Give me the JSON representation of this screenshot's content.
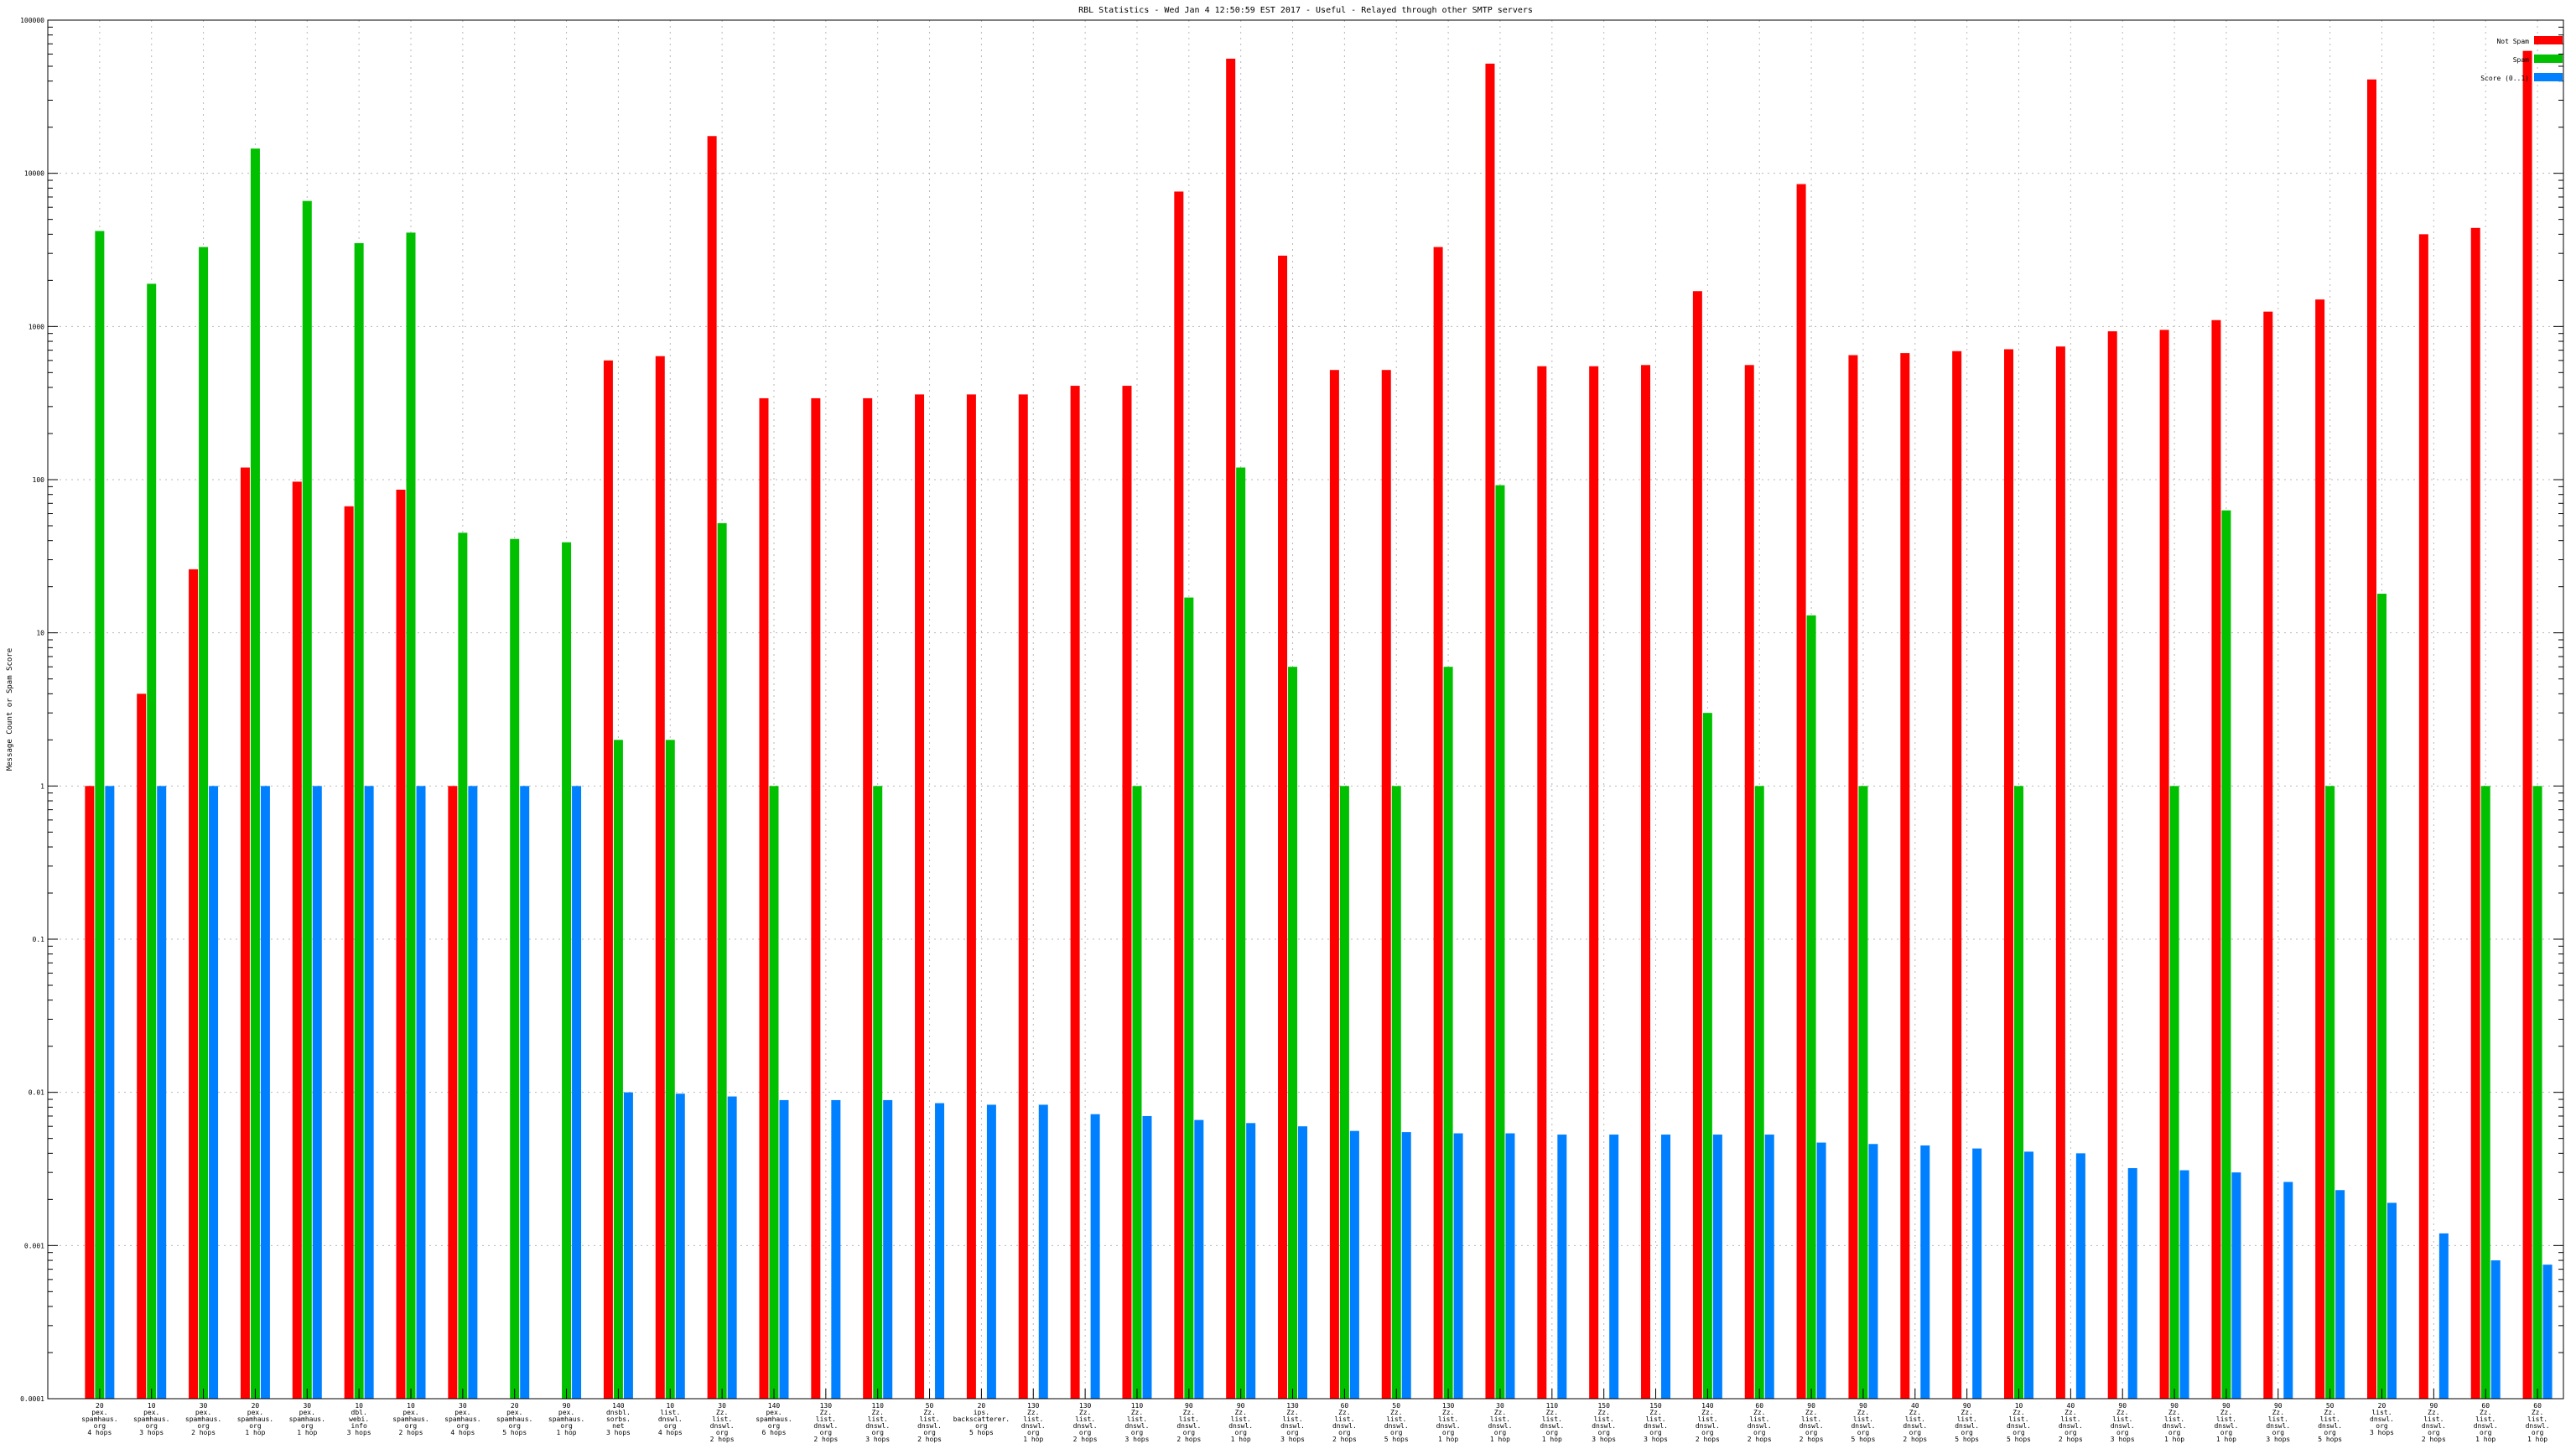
{
  "chart_data": {
    "type": "bar",
    "title": "RBL Statistics - Wed Jan  4 12:50:59 EST 2017 - Useful - Relayed through other SMTP servers",
    "xlabel": "",
    "ylabel": "Message Count or Spam Score",
    "yscale": "log",
    "ylim": [
      0.0001,
      100000
    ],
    "yticks": [
      "0.0001",
      "0.001",
      "0.01",
      "0.1",
      "1",
      "10",
      "100",
      "1000",
      "10000",
      "100000"
    ],
    "grid": true,
    "legend_position": "top-right",
    "categories": [
      [
        "20",
        "pex.",
        "spamhaus.",
        "org",
        "4 hops"
      ],
      [
        "10",
        "pex.",
        "spamhaus.",
        "org",
        "3 hops"
      ],
      [
        "30",
        "pex.",
        "spamhaus.",
        "org",
        "2 hops"
      ],
      [
        "20",
        "pex.",
        "spamhaus.",
        "org",
        "1 hop"
      ],
      [
        "30",
        "pex.",
        "spamhaus.",
        "org",
        "1 hop"
      ],
      [
        "10",
        "dbl.",
        "webi.",
        "info",
        "3 hops"
      ],
      [
        "10",
        "pex.",
        "spamhaus.",
        "org",
        "2 hops"
      ],
      [
        "30",
        "pex.",
        "spamhaus.",
        "org",
        "4 hops"
      ],
      [
        "20",
        "pex.",
        "spamhaus.",
        "org",
        "5 hops"
      ],
      [
        "90",
        "pex.",
        "spamhaus.",
        "org",
        "1 hop"
      ],
      [
        "140",
        "dnsbl.",
        "sorbs.",
        "net",
        "3 hops"
      ],
      [
        "10",
        "list.",
        "dnswl.",
        "org",
        "4 hops"
      ],
      [
        "30",
        "Zz.",
        "list.",
        "dnswl.",
        "org",
        "2 hops"
      ],
      [
        "140",
        "pex.",
        "spamhaus.",
        "org",
        "6 hops"
      ],
      [
        "130",
        "Zz.",
        "list.",
        "dnswl.",
        "org",
        "2 hops"
      ],
      [
        "110",
        "Zz.",
        "list.",
        "dnswl.",
        "org",
        "3 hops"
      ],
      [
        "50",
        "Zz.",
        "list.",
        "dnswl.",
        "org",
        "2 hops"
      ],
      [
        "20",
        "ips.",
        "backscatterer.",
        "org",
        "5 hops"
      ],
      [
        "130",
        "Zz.",
        "list.",
        "dnswl.",
        "org",
        "1 hop"
      ],
      [
        "130",
        "Zz.",
        "list.",
        "dnswl.",
        "org",
        "2 hops"
      ],
      [
        "110",
        "Zz.",
        "list.",
        "dnswl.",
        "org",
        "3 hops"
      ],
      [
        "90",
        "Zz.",
        "list.",
        "dnswl.",
        "org",
        "2 hops"
      ],
      [
        "90",
        "Zz.",
        "list.",
        "dnswl.",
        "org",
        "1 hop"
      ],
      [
        "130",
        "Zz.",
        "list.",
        "dnswl.",
        "org",
        "3 hops"
      ],
      [
        "60",
        "Zz.",
        "list.",
        "dnswl.",
        "org",
        "2 hops"
      ],
      [
        "50",
        "Zz.",
        "list.",
        "dnswl.",
        "org",
        "5 hops"
      ],
      [
        "130",
        "Zz.",
        "list.",
        "dnswl.",
        "org",
        "1 hop"
      ],
      [
        "30",
        "Zz.",
        "list.",
        "dnswl.",
        "org",
        "1 hop"
      ],
      [
        "110",
        "Zz.",
        "list.",
        "dnswl.",
        "org",
        "1 hop"
      ],
      [
        "150",
        "Zz.",
        "list.",
        "dnswl.",
        "org",
        "3 hops"
      ],
      [
        "150",
        "Zz.",
        "list.",
        "dnswl.",
        "org",
        "3 hops"
      ],
      [
        "140",
        "Zz.",
        "list.",
        "dnswl.",
        "org",
        "2 hops"
      ],
      [
        "60",
        "Zz.",
        "list.",
        "dnswl.",
        "org",
        "2 hops"
      ],
      [
        "90",
        "Zz.",
        "list.",
        "dnswl.",
        "org",
        "2 hops"
      ],
      [
        "90",
        "Zz.",
        "list.",
        "dnswl.",
        "org",
        "5 hops"
      ],
      [
        "40",
        "Zz.",
        "list.",
        "dnswl.",
        "org",
        "2 hops"
      ],
      [
        "90",
        "Zz.",
        "list.",
        "dnswl.",
        "org",
        "5 hops"
      ],
      [
        "10",
        "Zz.",
        "list.",
        "dnswl.",
        "org",
        "5 hops"
      ],
      [
        "40",
        "Zz.",
        "list.",
        "dnswl.",
        "org",
        "2 hops"
      ],
      [
        "90",
        "Zz.",
        "list.",
        "dnswl.",
        "org",
        "3 hops"
      ],
      [
        "90",
        "Zz.",
        "list.",
        "dnswl.",
        "org",
        "1 hop"
      ],
      [
        "90",
        "Zz.",
        "list.",
        "dnswl.",
        "org",
        "1 hop"
      ],
      [
        "90",
        "Zz.",
        "list.",
        "dnswl.",
        "org",
        "3 hops"
      ],
      [
        "50",
        "Zz.",
        "list.",
        "dnswl.",
        "org",
        "5 hops"
      ],
      [
        "20",
        "list.",
        "dnswl.",
        "org",
        "3 hops"
      ],
      [
        "90",
        "Zz.",
        "list.",
        "dnswl.",
        "org",
        "2 hops"
      ],
      [
        "60",
        "Zz.",
        "list.",
        "dnswl.",
        "org",
        "1 hop"
      ],
      [
        "60",
        "Zz.",
        "list.",
        "dnswl.",
        "org",
        "1 hop"
      ]
    ],
    "series": [
      {
        "name": "Not Spam",
        "color": "#ff0000",
        "values": [
          1,
          4,
          26,
          120,
          97,
          67,
          86,
          1,
          null,
          null,
          600,
          640,
          17500,
          340,
          340,
          340,
          360,
          360,
          360,
          410,
          410,
          7600,
          56000,
          2900,
          520,
          520,
          3300,
          52000,
          550,
          550,
          560,
          1700,
          560,
          8500,
          650,
          670,
          690,
          710,
          740,
          930,
          950,
          1100,
          1250,
          1500,
          41000,
          4000,
          4400,
          63000
        ]
      },
      {
        "name": "Spam",
        "color": "#00c000",
        "values": [
          4200,
          1900,
          3300,
          14500,
          6600,
          3500,
          4100,
          45,
          41,
          39,
          2,
          2,
          52,
          1,
          null,
          1,
          null,
          null,
          null,
          null,
          1,
          17,
          120,
          6,
          1,
          1,
          6,
          92,
          null,
          null,
          null,
          3,
          1,
          13,
          1,
          null,
          null,
          1,
          null,
          null,
          1,
          63,
          null,
          1,
          18,
          null,
          1,
          1
        ]
      },
      {
        "name": "Score (0..1)",
        "color": "#0080ff",
        "values": [
          1,
          1,
          1,
          1,
          1,
          1,
          1,
          1,
          1,
          1,
          0.01,
          0.0098,
          0.0094,
          0.0089,
          0.0089,
          0.0089,
          0.0085,
          0.0083,
          0.0083,
          0.0072,
          0.007,
          0.0066,
          0.0063,
          0.006,
          0.0056,
          0.0055,
          0.0054,
          0.0054,
          0.0053,
          0.0053,
          0.0053,
          0.0053,
          0.0053,
          0.0047,
          0.0046,
          0.0045,
          0.0043,
          0.0041,
          0.004,
          0.0032,
          0.0031,
          0.003,
          0.0026,
          0.0023,
          0.0019,
          0.0012,
          0.0008,
          0.00075
        ]
      }
    ]
  }
}
